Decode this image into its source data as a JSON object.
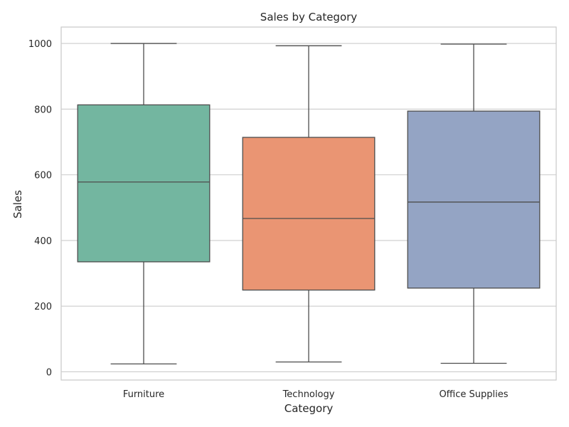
{
  "chart_data": {
    "type": "box",
    "title": "Sales by Category",
    "xlabel": "Category",
    "ylabel": "Sales",
    "ylim": [
      -25,
      1050
    ],
    "yticks": [
      0,
      200,
      400,
      600,
      800,
      1000
    ],
    "grid": true,
    "legend": "none",
    "categories": [
      "Furniture",
      "Technology",
      "Office Supplies"
    ],
    "boxes": [
      {
        "category": "Furniture",
        "min": 24,
        "q1": 335,
        "median": 578,
        "q3": 813,
        "max": 1000,
        "color": "#73b6a0"
      },
      {
        "category": "Technology",
        "min": 30,
        "q1": 249,
        "median": 467,
        "q3": 714,
        "max": 993,
        "color": "#ea9573"
      },
      {
        "category": "Office Supplies",
        "min": 26,
        "q1": 255,
        "median": 517,
        "q3": 794,
        "max": 998,
        "color": "#94a4c4"
      }
    ]
  }
}
